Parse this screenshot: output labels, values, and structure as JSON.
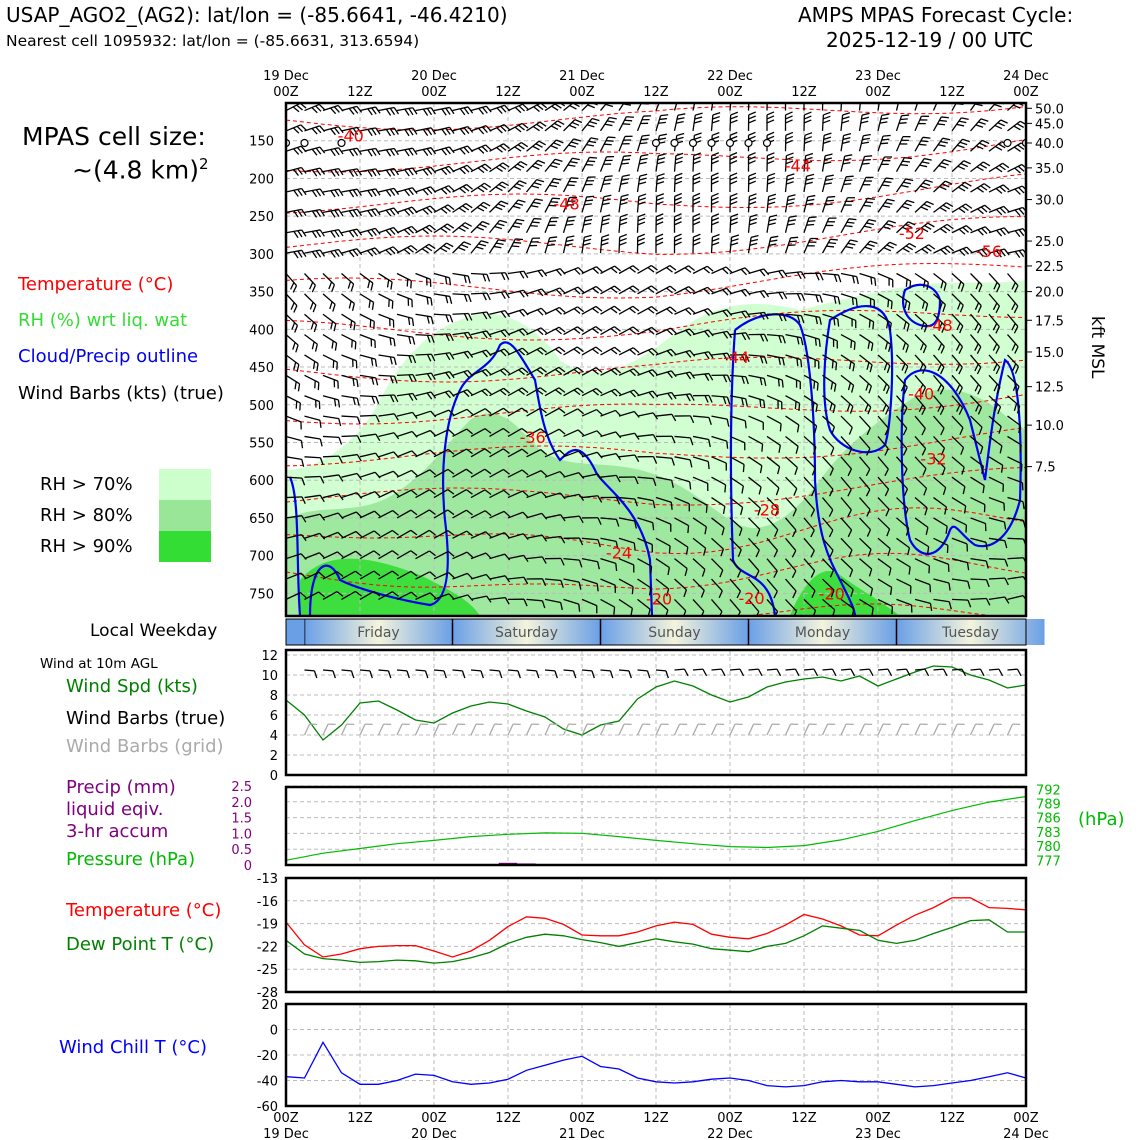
{
  "header": {
    "site_line": "USAP_AGO2_(AG2): lat/lon = (-85.6641, -46.4210)",
    "cell_line": "Nearest cell 1095932: lat/lon = (-85.6631, 313.6594)",
    "cycle_line1": "AMPS MPAS Forecast Cycle:",
    "cycle_line2": "2025-12-19 / 00 UTC"
  },
  "left_legend": {
    "cell_size_label": "MPAS cell size:",
    "cell_size_value": "~(4.8 km)",
    "cell_size_exp": "2",
    "temperature": "Temperature (°C)",
    "rh": "RH (%) wrt liq. wat",
    "cloud": "Cloud/Precip outline",
    "barbs": "Wind Barbs (kts) (true)",
    "rh70": "RH > 70%",
    "rh80": "RH > 80%",
    "rh90": "RH > 90%",
    "local_weekday": "Local Weekday",
    "wind10m": "Wind at 10m AGL",
    "wind_spd": "Wind Spd (kts)",
    "wind_barbs_true": "Wind Barbs (true)",
    "wind_barbs_grid": "Wind Barbs (grid)",
    "precip1": "Precip (mm)",
    "precip2": "liquid eqiv.",
    "precip3": "3-hr accum",
    "pressure": "Pressure (hPa)",
    "temp2": "Temperature (°C)",
    "dewpoint": "Dew Point T (°C)",
    "windchill": "Wind Chill T (°C)",
    "hpa_unit": "(hPa)",
    "kft_label": "kft MSL"
  },
  "colors": {
    "temp": "#ff0000",
    "rh_text": "#33cc33",
    "cloud": "#0000ee",
    "wind_spd": "#008000",
    "grid_barbs": "#aaaaaa",
    "precip": "#800080",
    "pressure": "#00bb00",
    "windchill": "#0000ff",
    "rh70": "#ccffcc",
    "rh80": "#99e699",
    "rh90": "#33dd33"
  },
  "time_axis": {
    "top_dates": [
      "19 Dec",
      "",
      "20 Dec",
      "",
      "21 Dec",
      "",
      "22 Dec",
      "",
      "23 Dec",
      "",
      "24 Dec"
    ],
    "hours": [
      "00Z",
      "12Z",
      "00Z",
      "12Z",
      "00Z",
      "12Z",
      "00Z",
      "12Z",
      "00Z",
      "12Z",
      "00Z"
    ],
    "bottom_dates": [
      "19 Dec",
      "",
      "20 Dec",
      "",
      "21 Dec",
      "",
      "22 Dec",
      "",
      "23 Dec",
      "",
      "24 Dec"
    ]
  },
  "weekdays": [
    "Friday",
    "Saturday",
    "Sunday",
    "Monday",
    "Tuesday"
  ],
  "chart_data": [
    {
      "type": "heatmap",
      "title": "Time-height cross section",
      "ylabel": "Pressure (hPa)",
      "y2label": "kft MSL",
      "pressure_ticks": [
        150,
        200,
        250,
        300,
        350,
        400,
        450,
        500,
        550,
        600,
        650,
        700,
        750
      ],
      "kft_ticks": [
        "50.0",
        "45.0",
        "40.0",
        "35.0",
        "30.0",
        "25.0",
        "22.5",
        "20.0",
        "17.5",
        "15.0",
        "12.5",
        "10.0",
        "7.5"
      ],
      "kft_pressure": [
        107,
        127,
        153,
        186,
        228,
        283,
        316,
        350,
        388,
        430,
        476,
        527,
        582
      ],
      "ylim": [
        100,
        780
      ],
      "xlim_hours": [
        0,
        120
      ],
      "temperature_labels": [
        {
          "hour": 10.5,
          "p": 143,
          "label": "-40"
        },
        {
          "hour": 40,
          "p": 543,
          "label": "-36"
        },
        {
          "hour": 45.5,
          "p": 233,
          "label": "-48"
        },
        {
          "hour": 54,
          "p": 696,
          "label": "-24"
        },
        {
          "hour": 60.5,
          "p": 757,
          "label": "-20"
        },
        {
          "hour": 73,
          "p": 437,
          "label": "-44"
        },
        {
          "hour": 75.5,
          "p": 756,
          "label": "-20"
        },
        {
          "hour": 78,
          "p": 639,
          "label": "-28"
        },
        {
          "hour": 83,
          "p": 183,
          "label": "-44"
        },
        {
          "hour": 88.5,
          "p": 750,
          "label": "-20"
        },
        {
          "hour": 101.5,
          "p": 272,
          "label": "-52"
        },
        {
          "hour": 103,
          "p": 485,
          "label": "-40"
        },
        {
          "hour": 105,
          "p": 571,
          "label": "-32"
        },
        {
          "hour": 106,
          "p": 394,
          "label": "-48"
        },
        {
          "hour": 114,
          "p": 296,
          "label": "-56"
        }
      ]
    },
    {
      "type": "line",
      "title": "Wind Spd (kts)",
      "ylim": [
        0,
        12
      ],
      "yticks": [
        0,
        2,
        4,
        6,
        8,
        10,
        12
      ],
      "x_hours": [
        0,
        3,
        6,
        9,
        12,
        15,
        18,
        21,
        24,
        27,
        30,
        33,
        36,
        39,
        42,
        45,
        48,
        51,
        54,
        57,
        60,
        63,
        66,
        69,
        72,
        75,
        78,
        81,
        84,
        87,
        90,
        93,
        96,
        99,
        102,
        105,
        108,
        111,
        114,
        117,
        120
      ],
      "values": [
        7.5,
        6.0,
        3.5,
        5.0,
        7.2,
        7.4,
        6.5,
        5.5,
        5.2,
        6.2,
        6.9,
        7.3,
        7.1,
        6.4,
        5.8,
        4.6,
        4.0,
        5.0,
        5.4,
        7.6,
        8.8,
        9.4,
        8.9,
        8.0,
        7.3,
        7.8,
        8.8,
        9.3,
        9.6,
        9.8,
        9.4,
        9.9,
        8.9,
        9.6,
        10.3,
        10.9,
        10.8,
        10.0,
        9.5,
        8.7,
        9.0
      ]
    },
    {
      "type": "line",
      "title": "Pressure (hPa)",
      "y_left_ticks": [
        "0",
        "0.5",
        "1.0",
        "1.5",
        "2.0",
        "2.5"
      ],
      "y_right_ticks": [
        "777",
        "780",
        "783",
        "786",
        "789",
        "792"
      ],
      "ylim": [
        776,
        792.5
      ],
      "x_hours": [
        0,
        6,
        12,
        18,
        24,
        30,
        36,
        42,
        48,
        54,
        60,
        66,
        72,
        78,
        84,
        90,
        96,
        102,
        108,
        114,
        120
      ],
      "values": [
        777.0,
        778.5,
        779.5,
        780.5,
        781.2,
        782.0,
        782.5,
        782.8,
        782.7,
        782.0,
        781.2,
        780.5,
        779.9,
        779.7,
        780.1,
        781.3,
        783.1,
        785.4,
        787.5,
        789.3,
        790.5
      ],
      "precip_bars": [
        {
          "hour": 33,
          "mm": 0.03
        },
        {
          "hour": 36,
          "mm": 0.07
        },
        {
          "hour": 39,
          "mm": 0.05
        }
      ]
    },
    {
      "type": "line",
      "title": "Temperature / Dew Point (°C)",
      "ylim": [
        -28,
        -13
      ],
      "yticks": [
        -28,
        -25,
        -22,
        -19,
        -16,
        -13
      ],
      "x_hours": [
        0,
        3,
        6,
        9,
        12,
        15,
        18,
        21,
        24,
        27,
        30,
        33,
        36,
        39,
        42,
        45,
        48,
        51,
        54,
        57,
        60,
        63,
        66,
        69,
        72,
        75,
        78,
        81,
        84,
        87,
        90,
        93,
        96,
        99,
        102,
        105,
        108,
        111,
        114,
        117,
        120
      ],
      "series": [
        {
          "name": "Temperature",
          "values": [
            -18.8,
            -21.8,
            -23.4,
            -23.0,
            -22.3,
            -22.0,
            -21.9,
            -21.9,
            -22.6,
            -23.4,
            -22.6,
            -21.2,
            -19.4,
            -18.1,
            -18.3,
            -19.1,
            -20.5,
            -20.6,
            -20.6,
            -20.1,
            -19.3,
            -18.8,
            -19.1,
            -20.4,
            -20.8,
            -21.0,
            -20.3,
            -19.2,
            -17.8,
            -18.4,
            -19.3,
            -20.5,
            -20.6,
            -19.2,
            -17.9,
            -16.9,
            -15.6,
            -15.6,
            -16.9,
            -17.0,
            -17.2
          ],
          "color": "#ff0000"
        },
        {
          "name": "Dew Point",
          "values": [
            -21.2,
            -23.0,
            -23.6,
            -23.8,
            -24.1,
            -24.0,
            -23.8,
            -23.9,
            -24.2,
            -24.0,
            -23.5,
            -22.8,
            -21.6,
            -20.8,
            -20.4,
            -20.6,
            -21.1,
            -21.5,
            -22.0,
            -21.5,
            -21.0,
            -21.4,
            -21.7,
            -22.3,
            -22.5,
            -22.7,
            -22.0,
            -21.6,
            -20.6,
            -19.3,
            -19.6,
            -19.9,
            -21.2,
            -21.6,
            -21.2,
            -20.3,
            -19.5,
            -18.6,
            -18.5,
            -20.1,
            -20.1
          ],
          "color": "#008000"
        }
      ]
    },
    {
      "type": "line",
      "title": "Wind Chill T (°C)",
      "ylim": [
        -60,
        20
      ],
      "yticks": [
        -60,
        -40,
        -20,
        0,
        20
      ],
      "x_hours": [
        0,
        3,
        6,
        9,
        12,
        15,
        18,
        21,
        24,
        27,
        30,
        33,
        36,
        39,
        42,
        45,
        48,
        51,
        54,
        57,
        60,
        63,
        66,
        69,
        72,
        75,
        78,
        81,
        84,
        87,
        90,
        93,
        96,
        99,
        102,
        105,
        108,
        111,
        114,
        117,
        120
      ],
      "values": [
        -37,
        -38,
        -10,
        -34,
        -43,
        -43,
        -40,
        -35,
        -36,
        -41,
        -43,
        -42,
        -39,
        -32,
        -28,
        -24,
        -21,
        -29,
        -31,
        -38,
        -41,
        -42,
        -41,
        -39,
        -38,
        -40,
        -44,
        -45,
        -44,
        -41,
        -40,
        -41,
        -41,
        -43,
        -45,
        -44,
        -42,
        -40,
        -37,
        -34,
        -38
      ]
    }
  ]
}
